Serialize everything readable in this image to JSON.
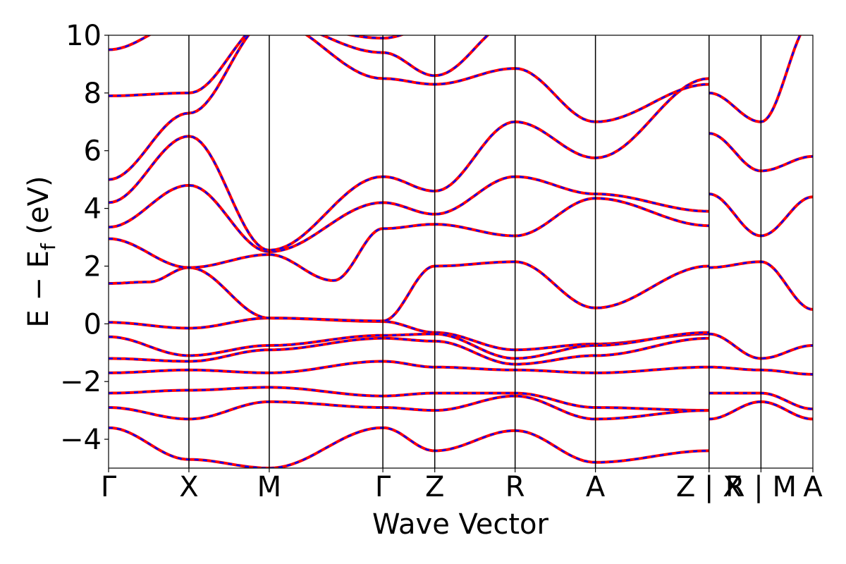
{
  "chart_data": {
    "type": "line",
    "title": "",
    "xlabel": "Wave Vector",
    "ylabel_parts": {
      "main": "E − E",
      "sub": "f",
      "unit": " (eV)"
    },
    "ylim": [
      -5,
      10
    ],
    "yticks": [
      -4,
      -2,
      0,
      2,
      4,
      6,
      8,
      10
    ],
    "ytick_labels": [
      "−4",
      "−2",
      "0",
      "2",
      "4",
      "6",
      "8",
      "10"
    ],
    "kpath": [
      {
        "label": "Γ",
        "k": 0.0
      },
      {
        "label": "X",
        "k": 0.5
      },
      {
        "label": "M",
        "k": 1.0
      },
      {
        "label": "Γ",
        "k": 1.707
      },
      {
        "label": "Z",
        "k": 2.03
      },
      {
        "label": "R",
        "k": 2.53
      },
      {
        "label": "A",
        "k": 3.03
      },
      {
        "label": "Z | X",
        "k": 3.737
      },
      {
        "label": "R | M",
        "k": 4.06
      },
      {
        "label": "A",
        "k": 4.383
      }
    ],
    "grid": false,
    "legend": "none",
    "series": [
      {
        "values_note": "",
        "style": "solid",
        "color": "#ff0000"
      },
      {
        "values_note": "",
        "style": "dashed",
        "color": "#0000ff"
      }
    ],
    "bands": [
      {
        "k": [
          0,
          0.5,
          1.0,
          1.707,
          2.03,
          2.53,
          3.03,
          3.737
        ],
        "e": [
          0.05,
          -0.15,
          0.2,
          0.08,
          -0.3,
          -0.9,
          -0.7,
          -0.35
        ]
      },
      {
        "k": [
          0,
          0.25,
          0.5,
          1.0,
          1.707,
          2.03,
          2.53,
          3.03,
          3.737
        ],
        "e": [
          1.4,
          1.45,
          1.95,
          0.2,
          0.1,
          2.0,
          2.15,
          0.55,
          2.0
        ]
      },
      {
        "k": [
          0,
          0.5,
          1.0,
          1.4,
          1.707,
          2.03,
          2.53,
          3.03,
          3.737
        ],
        "e": [
          2.95,
          1.95,
          2.4,
          1.5,
          3.3,
          3.45,
          3.05,
          4.35,
          3.4
        ]
      },
      {
        "k": [
          0,
          0.5,
          1.0,
          1.707,
          2.03,
          2.53,
          3.03,
          3.737
        ],
        "e": [
          -0.45,
          -1.1,
          -0.75,
          -0.4,
          -0.35,
          -1.2,
          -0.75,
          -0.3
        ]
      },
      {
        "k": [
          0,
          0.5,
          1.0,
          1.707,
          2.03,
          2.53,
          3.03,
          3.737
        ],
        "e": [
          -1.2,
          -1.3,
          -0.9,
          -0.5,
          -0.6,
          -1.4,
          -1.1,
          -0.5
        ]
      },
      {
        "k": [
          0,
          0.5,
          1.0,
          1.707,
          2.03,
          2.53,
          3.03,
          3.737
        ],
        "e": [
          -1.7,
          -1.6,
          -1.7,
          -1.3,
          -1.5,
          -1.6,
          -1.7,
          -1.5
        ]
      },
      {
        "k": [
          0,
          0.5,
          1.0,
          1.707,
          2.03,
          2.53,
          3.03,
          3.737
        ],
        "e": [
          -2.4,
          -2.3,
          -2.2,
          -2.5,
          -2.4,
          -2.4,
          -2.9,
          -3.0
        ]
      },
      {
        "k": [
          0,
          0.5,
          1.0,
          1.707,
          2.03,
          2.53,
          3.03,
          3.737
        ],
        "e": [
          -2.9,
          -3.3,
          -2.7,
          -2.9,
          -3.0,
          -2.5,
          -3.3,
          -3.0
        ]
      },
      {
        "k": [
          0,
          0.5,
          1.0,
          1.707,
          2.03,
          2.53,
          3.03,
          3.737
        ],
        "e": [
          -3.6,
          -4.7,
          -5.0,
          -3.6,
          -4.4,
          -3.7,
          -4.8,
          -4.4
        ]
      },
      {
        "k": [
          0,
          0.5,
          1.0,
          1.707,
          2.03,
          2.53,
          3.03,
          3.737
        ],
        "e": [
          3.35,
          4.8,
          2.5,
          4.2,
          3.8,
          5.1,
          4.5,
          3.9
        ]
      },
      {
        "k": [
          0,
          0.5,
          1.0,
          1.707,
          2.03,
          2.53,
          3.03,
          3.737
        ],
        "e": [
          4.2,
          6.5,
          2.55,
          5.1,
          4.6,
          7.0,
          5.75,
          8.5
        ]
      },
      {
        "k": [
          0,
          0.5,
          1.0,
          1.707,
          2.03,
          2.53,
          3.03,
          3.737
        ],
        "e": [
          5.0,
          7.3,
          10.5,
          8.5,
          8.3,
          8.85,
          7.0,
          8.3
        ]
      },
      {
        "k": [
          0,
          0.5,
          1.0,
          1.707,
          2.03,
          2.53,
          3.03,
          3.737
        ],
        "e": [
          7.9,
          8.0,
          10.5,
          9.4,
          8.6,
          10.5,
          10.5,
          10.5
        ]
      },
      {
        "k": [
          0,
          0.5,
          1.0,
          1.707,
          2.03,
          2.53,
          3.03,
          3.737
        ],
        "e": [
          9.5,
          10.5,
          10.5,
          9.9,
          10.3,
          10.5,
          10.5,
          10.5
        ]
      },
      {
        "k": [
          3.737,
          4.06,
          4.383
        ],
        "e": [
          -0.35,
          -1.2,
          -0.75
        ]
      },
      {
        "k": [
          3.737,
          4.06,
          4.383
        ],
        "e": [
          -1.5,
          -1.6,
          -1.75
        ]
      },
      {
        "k": [
          3.737,
          4.06,
          4.383
        ],
        "e": [
          -2.4,
          -2.4,
          -2.95
        ]
      },
      {
        "k": [
          3.737,
          4.06,
          4.383
        ],
        "e": [
          -3.3,
          -2.7,
          -3.3
        ]
      },
      {
        "k": [
          3.737,
          4.06,
          4.383
        ],
        "e": [
          1.95,
          2.15,
          0.5
        ]
      },
      {
        "k": [
          3.737,
          4.06,
          4.383
        ],
        "e": [
          4.5,
          3.05,
          4.4
        ]
      },
      {
        "k": [
          3.737,
          4.06,
          4.383
        ],
        "e": [
          6.6,
          5.3,
          5.8
        ]
      },
      {
        "k": [
          3.737,
          4.06,
          4.383
        ],
        "e": [
          8.0,
          7.0,
          10.5
        ]
      }
    ]
  }
}
